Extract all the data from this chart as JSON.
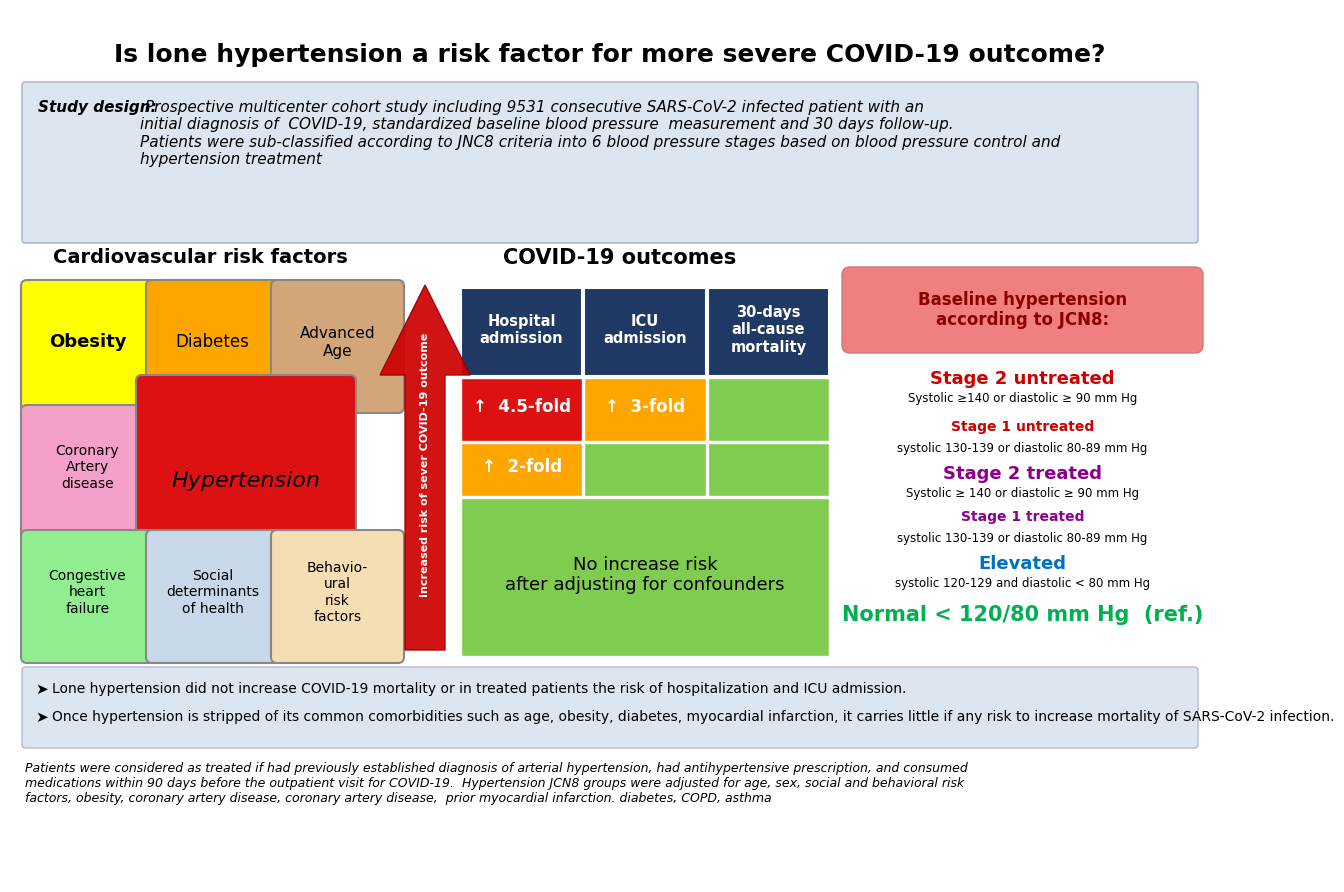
{
  "title": "Is lone hypertension a risk factor for more severe COVID-19 outcome?",
  "study_design_bold": "Study design:",
  "study_design_text": " Prospective multicenter cohort study including 9531 consecutive SARS-CoV-2 infected patient with an\ninitial diagnosis of  COVID-19, standardized baseline blood pressure  measurement and 30 days follow-up.\nPatients were sub-classified according to JNC8 criteria into 6 blood pressure stages based on blood pressure control and\nhypertension treatment",
  "cv_title": "Cardiovascular risk factors",
  "covid_title": "COVID-19 outcomes",
  "table_headers": [
    "Hospital\nadmission",
    "ICU\nadmission",
    "30-days\nall-cause\nmortality"
  ],
  "baseline_title": "Baseline hypertension\naccording to JCN8:",
  "stages": [
    {
      "label": "Stage 2 untreated",
      "color": "#cc0000",
      "sub": "Systolic ≥140 or diastolic ≥ 90 mm Hg"
    },
    {
      "label": "Stage 1 untreated",
      "color": "#cc0000",
      "sub": "systolic 130-139 or diastolic 80-89 mm Hg"
    },
    {
      "label": "Stage 2 treated",
      "color": "#8B008B",
      "sub": "Systolic ≥ 140 or diastolic ≥ 90 mm Hg"
    },
    {
      "label": "Stage 1 treated",
      "color": "#8B008B",
      "sub": "systolic 130-139 or diastolic 80-89 mm Hg"
    },
    {
      "label": "Elevated",
      "color": "#0070C0",
      "sub": "systolic 120-129 and diastolic < 80 mm Hg"
    },
    {
      "label": "Normal < 120/80 mm Hg  (ref.)",
      "color": "#00B050",
      "sub": ""
    }
  ],
  "bullets": [
    "Lone hypertension did not increase COVID-19 mortality or in treated patients the risk of hospitalization and ICU admission.",
    "Once hypertension is stripped of its common comorbidities such as age, obesity, diabetes, myocardial infarction, it carries little if any risk to increase mortality of SARS-CoV-2 infection."
  ],
  "footnote": "Patients were considered as treated if had previously established diagnosis of arterial hypertension, had antihypertensive prescription, and consumed\nmedications within 90 days before the outpatient visit for COVID-19.  Hypertension JCN8 groups were adjusted for age, sex, social and behavioral risk\nfactors, obesity, coronary artery disease, coronary artery disease,  prior myocardial infarction. diabetes, COPD, asthma",
  "bg_color": "#ffffff",
  "study_bg": "#dce6f1",
  "header_bg": "#1f3864",
  "arrow_color": "#cc0000",
  "baseline_bg": "#f08080",
  "puzzle_colors": {
    "obesity": "#FFFF00",
    "diabetes": "#FFA500",
    "advanced_age": "#D2A679",
    "coronary": "#F4A0C8",
    "hypertension": "#DD1111",
    "congestive": "#90EE90",
    "social": "#C8D8E8",
    "behavioural": "#F5DEB3"
  }
}
